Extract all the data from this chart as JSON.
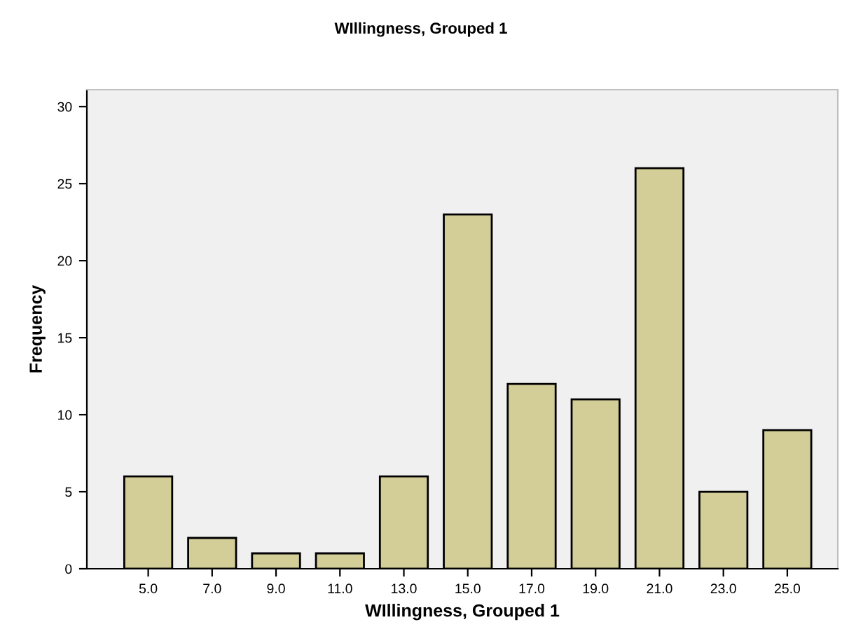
{
  "chart_data": {
    "type": "bar",
    "title": "WIllingness, Grouped 1",
    "xlabel": "WIllingness, Grouped 1",
    "ylabel": "Frequency",
    "categories": [
      "5.0",
      "7.0",
      "9.0",
      "11.0",
      "13.0",
      "15.0",
      "17.0",
      "19.0",
      "21.0",
      "23.0",
      "25.0"
    ],
    "values": [
      6,
      2,
      1,
      1,
      6,
      23,
      12,
      11,
      26,
      5,
      9
    ],
    "color": "#d3ce97",
    "ylim": [
      0,
      31.1
    ],
    "yticks": [
      0,
      5,
      10,
      15,
      20,
      25,
      30
    ],
    "grid": false,
    "legend": false
  }
}
